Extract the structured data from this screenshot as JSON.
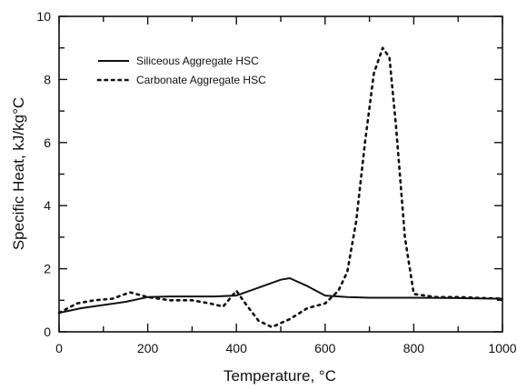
{
  "chart_data": {
    "type": "line",
    "xlabel": "Temperature, °C",
    "ylabel": "Specific Heat, kJ/kg°C",
    "xlim": [
      0,
      1000
    ],
    "ylim": [
      0,
      10
    ],
    "xticks": [
      0,
      200,
      400,
      600,
      800,
      1000
    ],
    "yticks": [
      0,
      2,
      4,
      6,
      8,
      10
    ],
    "x_minor_step": 100,
    "y_minor_step": 1,
    "grid": false,
    "legend_position": "top-left",
    "series": [
      {
        "name": "Siliceous Aggregate HSC",
        "style": "solid",
        "color": "#111111",
        "x": [
          0,
          50,
          100,
          150,
          200,
          250,
          300,
          350,
          400,
          450,
          500,
          520,
          560,
          600,
          650,
          700,
          800,
          900,
          1000
        ],
        "y": [
          0.6,
          0.75,
          0.85,
          0.95,
          1.1,
          1.12,
          1.12,
          1.12,
          1.15,
          1.4,
          1.65,
          1.7,
          1.45,
          1.15,
          1.1,
          1.08,
          1.08,
          1.07,
          1.05
        ]
      },
      {
        "name": "Carbonate Aggregate HSC",
        "style": "dotted",
        "color": "#111111",
        "x": [
          0,
          40,
          80,
          120,
          160,
          200,
          250,
          300,
          340,
          370,
          400,
          420,
          450,
          480,
          520,
          560,
          600,
          630,
          650,
          670,
          690,
          710,
          730,
          745,
          760,
          780,
          800,
          850,
          900,
          1000
        ],
        "y": [
          0.6,
          0.9,
          1.0,
          1.05,
          1.25,
          1.1,
          1.0,
          1.0,
          0.9,
          0.8,
          1.3,
          0.9,
          0.35,
          0.15,
          0.4,
          0.75,
          0.9,
          1.3,
          1.9,
          3.5,
          6.0,
          8.2,
          9.0,
          8.7,
          6.5,
          3.0,
          1.2,
          1.1,
          1.1,
          1.05
        ]
      }
    ]
  }
}
